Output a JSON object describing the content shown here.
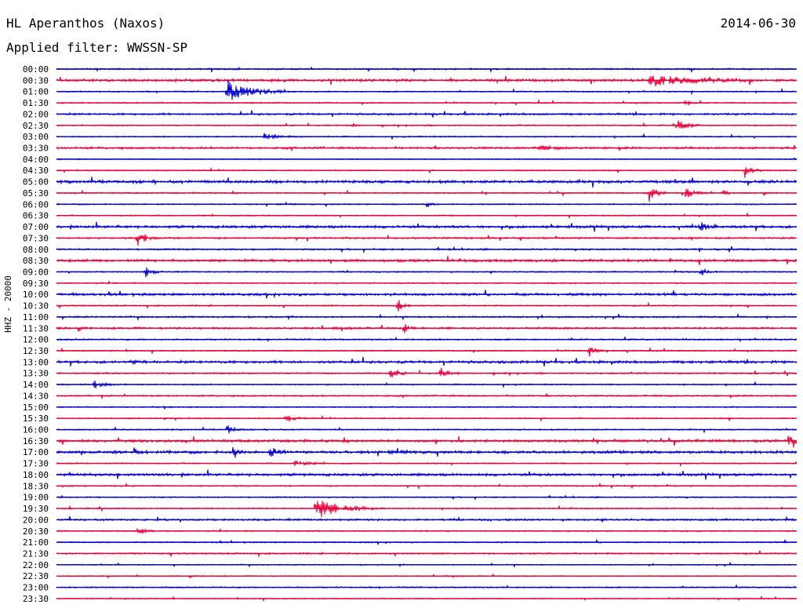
{
  "header": {
    "station": "HL Aperanthos (Naxos)",
    "date": "2014-06-30",
    "filter": "Applied filter: WWSSN-SP"
  },
  "chart_data": {
    "type": "line",
    "title": "HL Aperanthos (Naxos)",
    "ylabel": "HHZ - 20000",
    "traces": [
      "00:00",
      "00:30",
      "01:00",
      "01:30",
      "02:00",
      "02:30",
      "03:00",
      "03:30",
      "04:00",
      "04:30",
      "05:00",
      "05:30",
      "06:00",
      "06:30",
      "07:00",
      "07:30",
      "08:00",
      "08:30",
      "09:00",
      "09:30",
      "10:00",
      "10:30",
      "11:00",
      "11:30",
      "12:00",
      "12:30",
      "13:00",
      "13:30",
      "14:00",
      "14:30",
      "15:00",
      "15:30",
      "16:00",
      "16:30",
      "17:00",
      "17:30",
      "18:00",
      "18:30",
      "19:00",
      "19:30",
      "20:00",
      "20:30",
      "21:00",
      "21:30",
      "22:00",
      "22:30",
      "23:00",
      "23:30"
    ],
    "colors": [
      "#0000cc",
      "#e8003a"
    ],
    "noise": [
      1.2,
      2.0,
      1.0,
      1.0,
      1.5,
      1.0,
      1.0,
      1.6,
      0.8,
      1.0,
      2.2,
      1.0,
      1.0,
      1.0,
      2.0,
      1.3,
      1.3,
      2.0,
      1.0,
      1.0,
      2.0,
      1.0,
      1.2,
      1.6,
      1.2,
      1.0,
      2.0,
      1.2,
      1.0,
      1.2,
      1.0,
      1.0,
      1.0,
      2.0,
      2.2,
      1.0,
      2.0,
      1.0,
      1.0,
      1.0,
      1.5,
      1.0,
      1.0,
      1.2,
      0.8,
      0.8,
      1.0,
      0.8
    ],
    "events": [
      {
        "trace": "00:30",
        "x": 0.8,
        "amp": 7,
        "dur": 0.05
      },
      {
        "trace": "01:00",
        "x": 0.23,
        "amp": 14,
        "dur": 0.03
      },
      {
        "trace": "01:30",
        "x": 0.85,
        "amp": 3,
        "dur": 0.006
      },
      {
        "trace": "02:30",
        "x": 0.84,
        "amp": 6,
        "dur": 0.012
      },
      {
        "trace": "02:30",
        "x": 0.4,
        "amp": 3,
        "dur": 0.004
      },
      {
        "trace": "03:00",
        "x": 0.28,
        "amp": 5,
        "dur": 0.015
      },
      {
        "trace": "03:30",
        "x": 0.65,
        "amp": 3,
        "dur": 0.02
      },
      {
        "trace": "04:30",
        "x": 0.93,
        "amp": 8,
        "dur": 0.008
      },
      {
        "trace": "05:30",
        "x": 0.8,
        "amp": 12,
        "dur": 0.008
      },
      {
        "trace": "05:30",
        "x": 0.85,
        "amp": 9,
        "dur": 0.01
      },
      {
        "trace": "05:30",
        "x": 0.9,
        "amp": 4,
        "dur": 0.006
      },
      {
        "trace": "06:00",
        "x": 0.5,
        "amp": 4,
        "dur": 0.006
      },
      {
        "trace": "07:00",
        "x": 0.87,
        "amp": 5,
        "dur": 0.01
      },
      {
        "trace": "07:30",
        "x": 0.11,
        "amp": 10,
        "dur": 0.01
      },
      {
        "trace": "09:00",
        "x": 0.12,
        "amp": 7,
        "dur": 0.008
      },
      {
        "trace": "09:00",
        "x": 0.87,
        "amp": 6,
        "dur": 0.008
      },
      {
        "trace": "10:30",
        "x": 0.46,
        "amp": 11,
        "dur": 0.006
      },
      {
        "trace": "11:30",
        "x": 0.47,
        "amp": 6,
        "dur": 0.005
      },
      {
        "trace": "12:30",
        "x": 0.72,
        "amp": 9,
        "dur": 0.006
      },
      {
        "trace": "13:00",
        "x": 0.1,
        "amp": 3,
        "dur": 0.01
      },
      {
        "trace": "13:30",
        "x": 0.45,
        "amp": 6,
        "dur": 0.01
      },
      {
        "trace": "13:30",
        "x": 0.52,
        "amp": 7,
        "dur": 0.008
      },
      {
        "trace": "14:00",
        "x": 0.05,
        "amp": 7,
        "dur": 0.01
      },
      {
        "trace": "15:30",
        "x": 0.31,
        "amp": 5,
        "dur": 0.01
      },
      {
        "trace": "16:00",
        "x": 0.23,
        "amp": 7,
        "dur": 0.008
      },
      {
        "trace": "16:30",
        "x": 0.99,
        "amp": 10,
        "dur": 0.006
      },
      {
        "trace": "17:00",
        "x": 0.24,
        "amp": 9,
        "dur": 0.005
      },
      {
        "trace": "17:00",
        "x": 0.29,
        "amp": 7,
        "dur": 0.008
      },
      {
        "trace": "17:30",
        "x": 0.32,
        "amp": 4,
        "dur": 0.015
      },
      {
        "trace": "19:30",
        "x": 0.35,
        "amp": 14,
        "dur": 0.03
      },
      {
        "trace": "20:30",
        "x": 0.11,
        "amp": 6,
        "dur": 0.008
      }
    ]
  }
}
